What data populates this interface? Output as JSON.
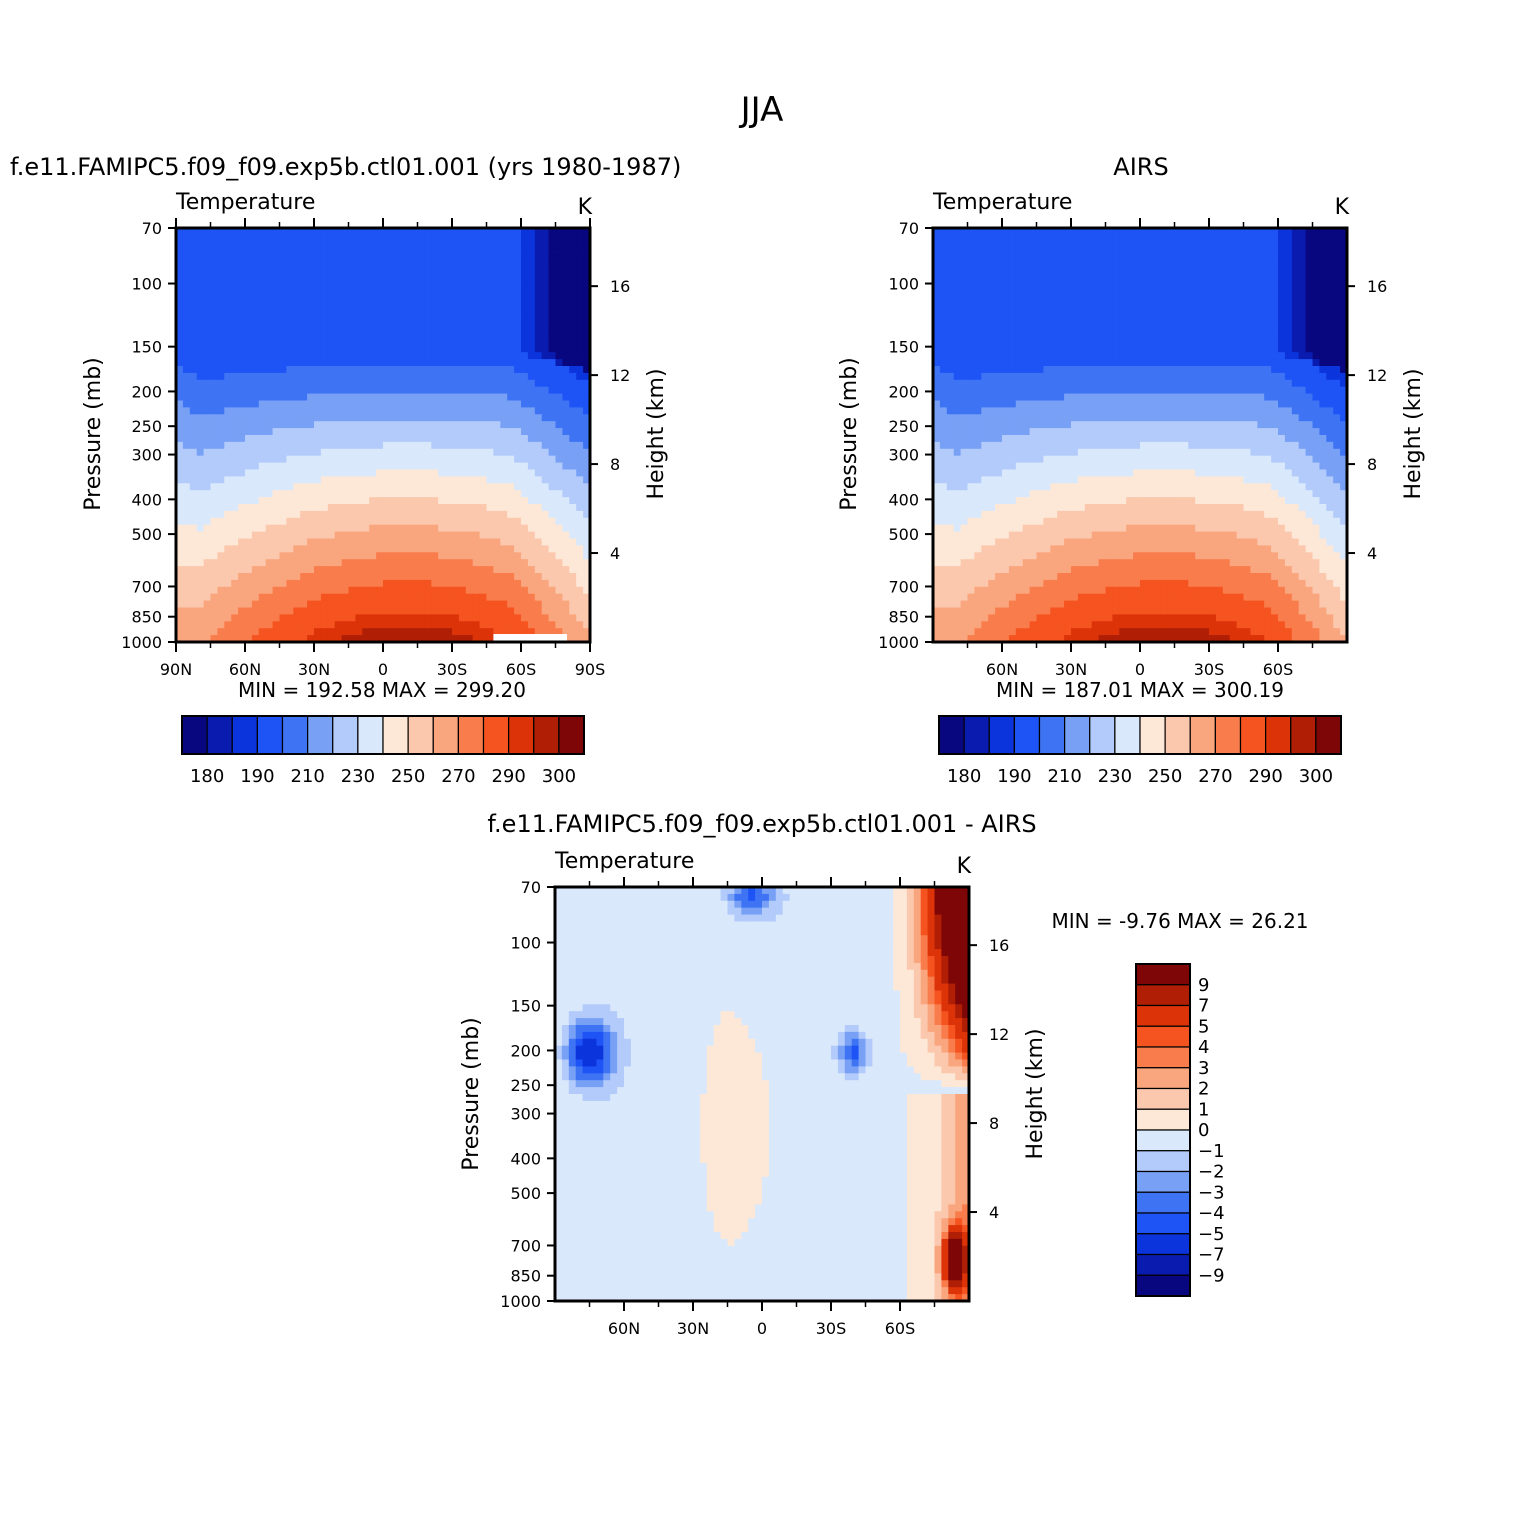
{
  "figure_title": "JJA",
  "colors": {
    "abs_palette": [
      "#08077f",
      "#0a1cb0",
      "#0b34dc",
      "#1e53f5",
      "#3e74f4",
      "#78a1f6",
      "#b3cbfb",
      "#d9e8fb",
      "#fde8d8",
      "#fbc8ad",
      "#f9a67e",
      "#f97d4c",
      "#f5531f",
      "#dc3309",
      "#b01f05",
      "#7f0606"
    ],
    "diff_palette": [
      "#08077f",
      "#0a1cb0",
      "#0b34dc",
      "#1e53f5",
      "#3e74f4",
      "#78a1f6",
      "#b3cbfb",
      "#d9e8fb",
      "#fde8d8",
      "#fbc8ad",
      "#f9a67e",
      "#f97d4c",
      "#f5531f",
      "#dc3309",
      "#b01f05",
      "#7f0606"
    ]
  },
  "panels": [
    {
      "title": "f.e11.FAMIPC5.f09_f09.exp5b.ctl01.001 (yrs 1980-1987)",
      "field_label": "Temperature",
      "units_label": "K",
      "y_title": "Pressure (mb)",
      "y2_title": "Height (km)",
      "min_max": "MIN = 192.58   MAX = 299.20",
      "colorbar_labels": [
        "180",
        "190",
        "210",
        "230",
        "250",
        "270",
        "290",
        "300"
      ]
    },
    {
      "title": "AIRS",
      "field_label": "Temperature",
      "units_label": "K",
      "y_title": "Pressure (mb)",
      "y2_title": "Height (km)",
      "min_max": "MIN = 187.01   MAX = 300.19",
      "colorbar_labels": [
        "180",
        "190",
        "210",
        "230",
        "250",
        "270",
        "290",
        "300"
      ]
    },
    {
      "title": "f.e11.FAMIPC5.f09_f09.exp5b.ctl01.001 - AIRS",
      "field_label": "Temperature",
      "units_label": "K",
      "y_title": "Pressure (mb)",
      "y2_title": "Height (km)",
      "min_max": "MIN =   -9.76   MAX =   26.21",
      "colorbar_labels": [
        "9",
        "7",
        "5",
        "4",
        "3",
        "2",
        "1",
        "0",
        "-1",
        "-2",
        "-3",
        "-4",
        "-5",
        "-7",
        "-9"
      ]
    }
  ],
  "chart_data": [
    {
      "type": "heatmap",
      "title": "f.e11.FAMIPC5.f09_f09.exp5b.ctl01.001 (yrs 1980-1987)",
      "subtitle": "Temperature",
      "units": "K",
      "xlabel": "",
      "ylabel": "Pressure (mb)",
      "y2label": "Height (km)",
      "x_ticks": [
        {
          "value": 90,
          "label": "90N"
        },
        {
          "value": 60,
          "label": "60N"
        },
        {
          "value": 30,
          "label": "30N"
        },
        {
          "value": 0,
          "label": "0"
        },
        {
          "value": -30,
          "label": "30S"
        },
        {
          "value": -60,
          "label": "60S"
        },
        {
          "value": -90,
          "label": "90S"
        }
      ],
      "y_ticks": [
        70,
        100,
        150,
        200,
        250,
        300,
        400,
        500,
        700,
        850,
        1000
      ],
      "y2_ticks": [
        16,
        12,
        8,
        4
      ],
      "xlim": [
        90,
        -90
      ],
      "ylim": [
        1000,
        70
      ],
      "levels": [
        180,
        185,
        190,
        200,
        210,
        220,
        230,
        240,
        250,
        260,
        270,
        280,
        290,
        295,
        300
      ],
      "min": 192.58,
      "max": 299.2,
      "colorbar": {
        "orientation": "horizontal",
        "tick_labels": [
          "180",
          "190",
          "210",
          "230",
          "250",
          "270",
          "290",
          "300"
        ]
      }
    },
    {
      "type": "heatmap",
      "title": "AIRS",
      "subtitle": "Temperature",
      "units": "K",
      "xlabel": "",
      "ylabel": "Pressure (mb)",
      "y2label": "Height (km)",
      "x_ticks": [
        {
          "value": 60,
          "label": "60N"
        },
        {
          "value": 30,
          "label": "30N"
        },
        {
          "value": 0,
          "label": "0"
        },
        {
          "value": -30,
          "label": "30S"
        },
        {
          "value": -60,
          "label": "60S"
        }
      ],
      "y_ticks": [
        70,
        100,
        150,
        200,
        250,
        300,
        400,
        500,
        700,
        850,
        1000
      ],
      "y2_ticks": [
        16,
        12,
        8,
        4
      ],
      "xlim": [
        90,
        -90
      ],
      "ylim": [
        1000,
        70
      ],
      "levels": [
        180,
        185,
        190,
        200,
        210,
        220,
        230,
        240,
        250,
        260,
        270,
        280,
        290,
        295,
        300
      ],
      "min": 187.01,
      "max": 300.19,
      "colorbar": {
        "orientation": "horizontal",
        "tick_labels": [
          "180",
          "190",
          "210",
          "230",
          "250",
          "270",
          "290",
          "300"
        ]
      }
    },
    {
      "type": "heatmap",
      "title": "f.e11.FAMIPC5.f09_f09.exp5b.ctl01.001 - AIRS",
      "subtitle": "Temperature",
      "units": "K",
      "xlabel": "",
      "ylabel": "Pressure (mb)",
      "y2label": "Height (km)",
      "x_ticks": [
        {
          "value": 60,
          "label": "60N"
        },
        {
          "value": 30,
          "label": "30N"
        },
        {
          "value": 0,
          "label": "0"
        },
        {
          "value": -30,
          "label": "30S"
        },
        {
          "value": -60,
          "label": "60S"
        }
      ],
      "y_ticks": [
        70,
        100,
        150,
        200,
        250,
        300,
        400,
        500,
        700,
        850,
        1000
      ],
      "y2_ticks": [
        16,
        12,
        8,
        4
      ],
      "xlim": [
        90,
        -90
      ],
      "ylim": [
        1000,
        70
      ],
      "levels": [
        -9,
        -7,
        -5,
        -4,
        -3,
        -2,
        -1,
        0,
        1,
        2,
        3,
        4,
        5,
        7,
        9
      ],
      "min": -9.76,
      "max": 26.21,
      "colorbar": {
        "orientation": "vertical",
        "tick_labels": [
          "9",
          "7",
          "5",
          "4",
          "3",
          "2",
          "1",
          "0",
          "-1",
          "-2",
          "-3",
          "-4",
          "-5",
          "-7",
          "-9"
        ]
      }
    }
  ]
}
